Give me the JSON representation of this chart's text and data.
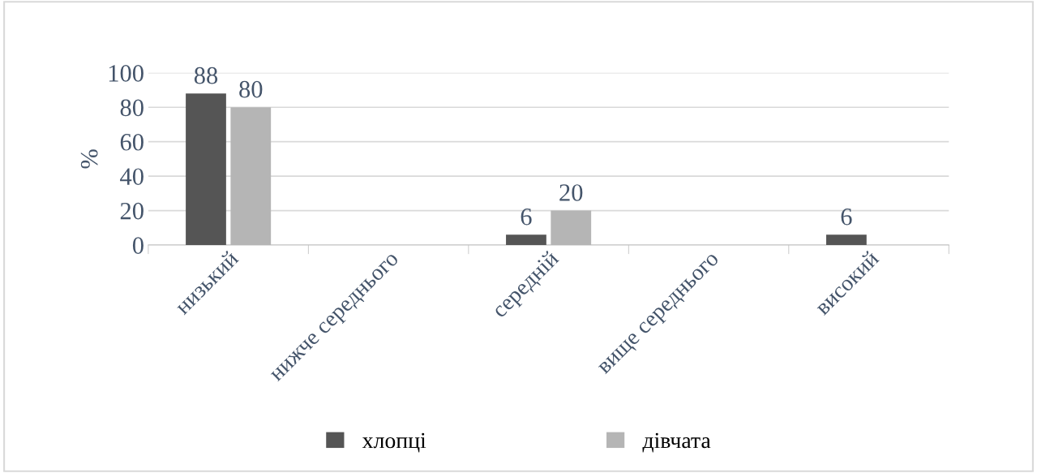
{
  "chart_data": {
    "type": "bar",
    "ylabel": "%",
    "categories": [
      "низький",
      "нижче середнього",
      "середній",
      "вище середнього",
      "високий"
    ],
    "series": [
      {
        "name": "хлопці",
        "color": "#555555",
        "values": [
          88,
          0,
          6,
          0,
          6
        ],
        "value_labels": [
          "88",
          null,
          "6",
          null,
          "6"
        ]
      },
      {
        "name": "дівчата",
        "color": "#b5b5b5",
        "values": [
          80,
          0,
          20,
          0,
          0
        ],
        "value_labels": [
          "80",
          null,
          "20",
          null,
          null
        ]
      }
    ],
    "ylim": [
      0,
      100
    ],
    "yticks": [
      0,
      20,
      40,
      60,
      80,
      100
    ],
    "grid": "y",
    "legend": "bottom"
  }
}
